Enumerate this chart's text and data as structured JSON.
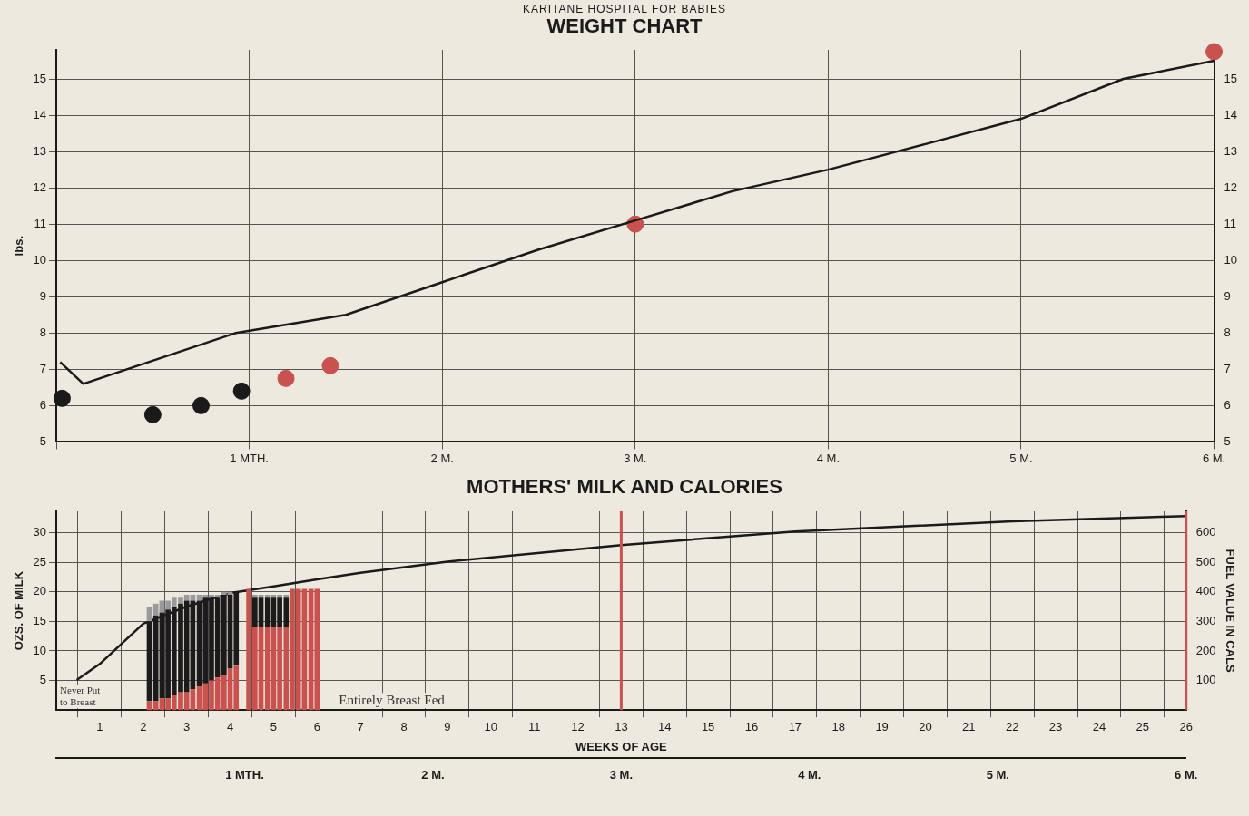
{
  "chart_data": [
    {
      "type": "line",
      "title": "WEIGHT CHART",
      "subtitle": "KARITANE HOSPITAL FOR BABIES",
      "ylabel": "lbs.",
      "xlim": [
        0,
        6
      ],
      "xticks": [
        {
          "value": 0,
          "label": null
        },
        {
          "value": 1,
          "label": "1 MTH."
        },
        {
          "value": 2,
          "label": "2 M."
        },
        {
          "value": 3,
          "label": "3 M."
        },
        {
          "value": 4,
          "label": "4 M."
        },
        {
          "value": 5,
          "label": "5 M."
        },
        {
          "value": 6,
          "label": "6 M."
        }
      ],
      "ylim": [
        5,
        15.8
      ],
      "yticks": [
        5,
        6,
        7,
        8,
        9,
        10,
        11,
        12,
        13,
        14,
        15
      ],
      "y2lim": [
        5,
        15.8
      ],
      "y2ticks": [
        5,
        6,
        7,
        8,
        9,
        10,
        11,
        12,
        13,
        14,
        15
      ],
      "grid": true,
      "series": [
        {
          "type": "line",
          "color": "#1a1a1a",
          "marker": "none",
          "x": [
            0.02,
            0.14,
            0.93,
            1.5,
            2,
            2.5,
            3,
            3.5,
            4,
            4.5,
            5,
            5.53,
            6
          ],
          "values": [
            7.2,
            6.6,
            8.0,
            8.5,
            9.4,
            10.3,
            11.1,
            11.9,
            12.5,
            13.2,
            13.9,
            15.0,
            15.5
          ]
        },
        {
          "type": "scatter",
          "marker": "circle",
          "colors": [
            "#1a1a1a",
            "#1a1a1a",
            "#1a1a1a",
            "#1a1a1a",
            "#c9524e",
            "#c9524e",
            "#c9524e",
            "#c9524e"
          ],
          "x": [
            0.03,
            0.5,
            0.75,
            0.96,
            1.19,
            1.42,
            3.0,
            6.0
          ],
          "values": [
            6.2,
            5.75,
            6.0,
            6.4,
            6.75,
            7.1,
            11.0,
            15.75
          ]
        }
      ]
    },
    {
      "type": "bar",
      "stacked": true,
      "title": "MOTHERS' MILK AND CALORIES",
      "ylabel": "OZS. OF MILK",
      "y2label": "FUEL VALUE IN CALS",
      "xlabel": "WEEKS OF AGE",
      "xlim": [
        0,
        26
      ],
      "xticks": [
        1,
        2,
        3,
        4,
        5,
        6,
        7,
        8,
        9,
        10,
        11,
        12,
        13,
        14,
        15,
        16,
        17,
        18,
        19,
        20,
        21,
        22,
        23,
        24,
        25,
        26
      ],
      "x2lim": [
        0,
        6
      ],
      "x2ticks": [
        {
          "value": 1,
          "label": "1 MTH."
        },
        {
          "value": 2,
          "label": "2 M."
        },
        {
          "value": 3,
          "label": "3 M."
        },
        {
          "value": 4,
          "label": "4 M."
        },
        {
          "value": 5,
          "label": "5 M."
        },
        {
          "value": 6,
          "label": "6 M."
        }
      ],
      "ylim": [
        0,
        33.6
      ],
      "yticks": [
        5,
        10,
        15,
        20,
        25,
        30
      ],
      "y2lim": [
        0,
        672
      ],
      "y2ticks": [
        100,
        200,
        300,
        400,
        500,
        600
      ],
      "grid": true,
      "ref_lines": [
        {
          "axis": "x",
          "value": 13,
          "color": "#c9524e"
        },
        {
          "axis": "x",
          "value": 26,
          "color": "#c9524e"
        }
      ],
      "annotations": [
        "Never Put to Breast",
        "Entirely Breast Fed"
      ],
      "x": [
        2.14,
        2.29,
        2.43,
        2.57,
        2.71,
        2.86,
        3,
        3.14,
        3.29,
        3.43,
        3.57,
        3.71,
        3.86,
        4,
        4.14,
        4.43,
        4.57,
        4.71,
        4.86,
        5,
        5.14,
        5.29,
        5.43,
        5.57,
        5.71,
        5.86,
        6
      ],
      "series": [
        {
          "type": "bar",
          "color": "#c9524e",
          "values": [
            1.5,
            1.5,
            2,
            2,
            2.5,
            3,
            3,
            3.5,
            4,
            4.5,
            5,
            5.5,
            6,
            7,
            7.5,
            20.5,
            14,
            14,
            14,
            14,
            14,
            14,
            20.5,
            20.5,
            20.5,
            20.5,
            20.5
          ]
        },
        {
          "type": "bar",
          "color": "#1c1a1a",
          "values": [
            13.5,
            14.5,
            14.5,
            15,
            15,
            15,
            15.5,
            15,
            14.5,
            14.5,
            14,
            13.5,
            13.5,
            12.5,
            12.5,
            null,
            5,
            5,
            5,
            5,
            5,
            5,
            null,
            null,
            null,
            null,
            null
          ]
        },
        {
          "type": "bar",
          "color": "#9a9a9a",
          "values": [
            2.5,
            2,
            2,
            1.5,
            1.5,
            1,
            1,
            1,
            1,
            0.5,
            0.5,
            0.5,
            0.5,
            0.5,
            null,
            null,
            0.5,
            0.5,
            0.5,
            0.5,
            0.5,
            0.5,
            null,
            null,
            null,
            null,
            null
          ]
        },
        {
          "type": "line",
          "color": "#1a1a1a",
          "marker": "none",
          "x": [
            0.47,
            1,
            2,
            3,
            4,
            5,
            6,
            7,
            9,
            13,
            17,
            22,
            26
          ],
          "values": [
            5.1,
            7.8,
            14.6,
            17.5,
            19.8,
            20.9,
            22.1,
            23.2,
            25.1,
            27.9,
            30.2,
            31.9,
            32.8
          ]
        }
      ]
    }
  ]
}
